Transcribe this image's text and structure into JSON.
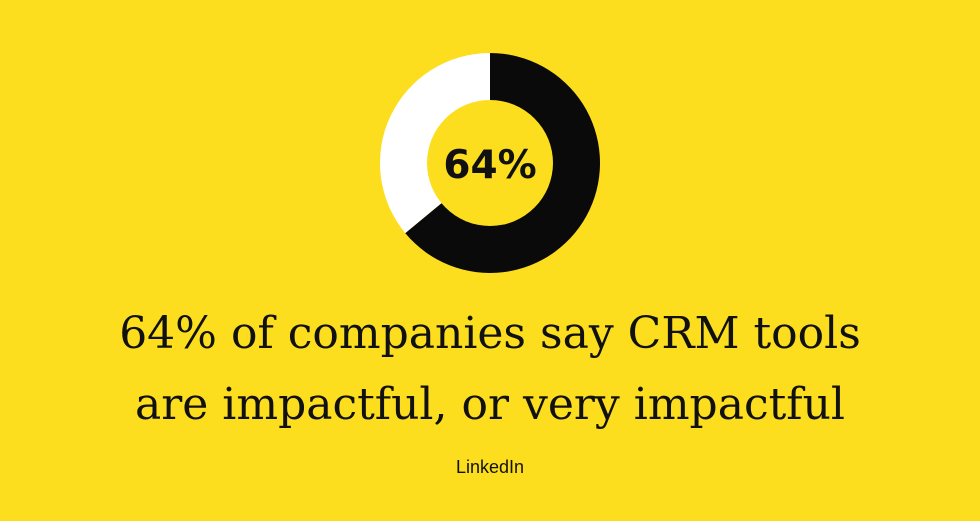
{
  "colors": {
    "background": "#FCDE1E",
    "primary": "#0A0A0A",
    "remainder": "#FFFFFF",
    "text": "#111111"
  },
  "chart_data": {
    "type": "pie",
    "style": "donut",
    "center_label": "64%",
    "slices": [
      {
        "value": 64,
        "color": "#0A0A0A"
      },
      {
        "value": 36,
        "color": "#FFFFFF"
      }
    ]
  },
  "headline": {
    "line1": "64% of companies say CRM tools",
    "line2": "are impactful, or very impactful"
  },
  "source": "LinkedIn"
}
